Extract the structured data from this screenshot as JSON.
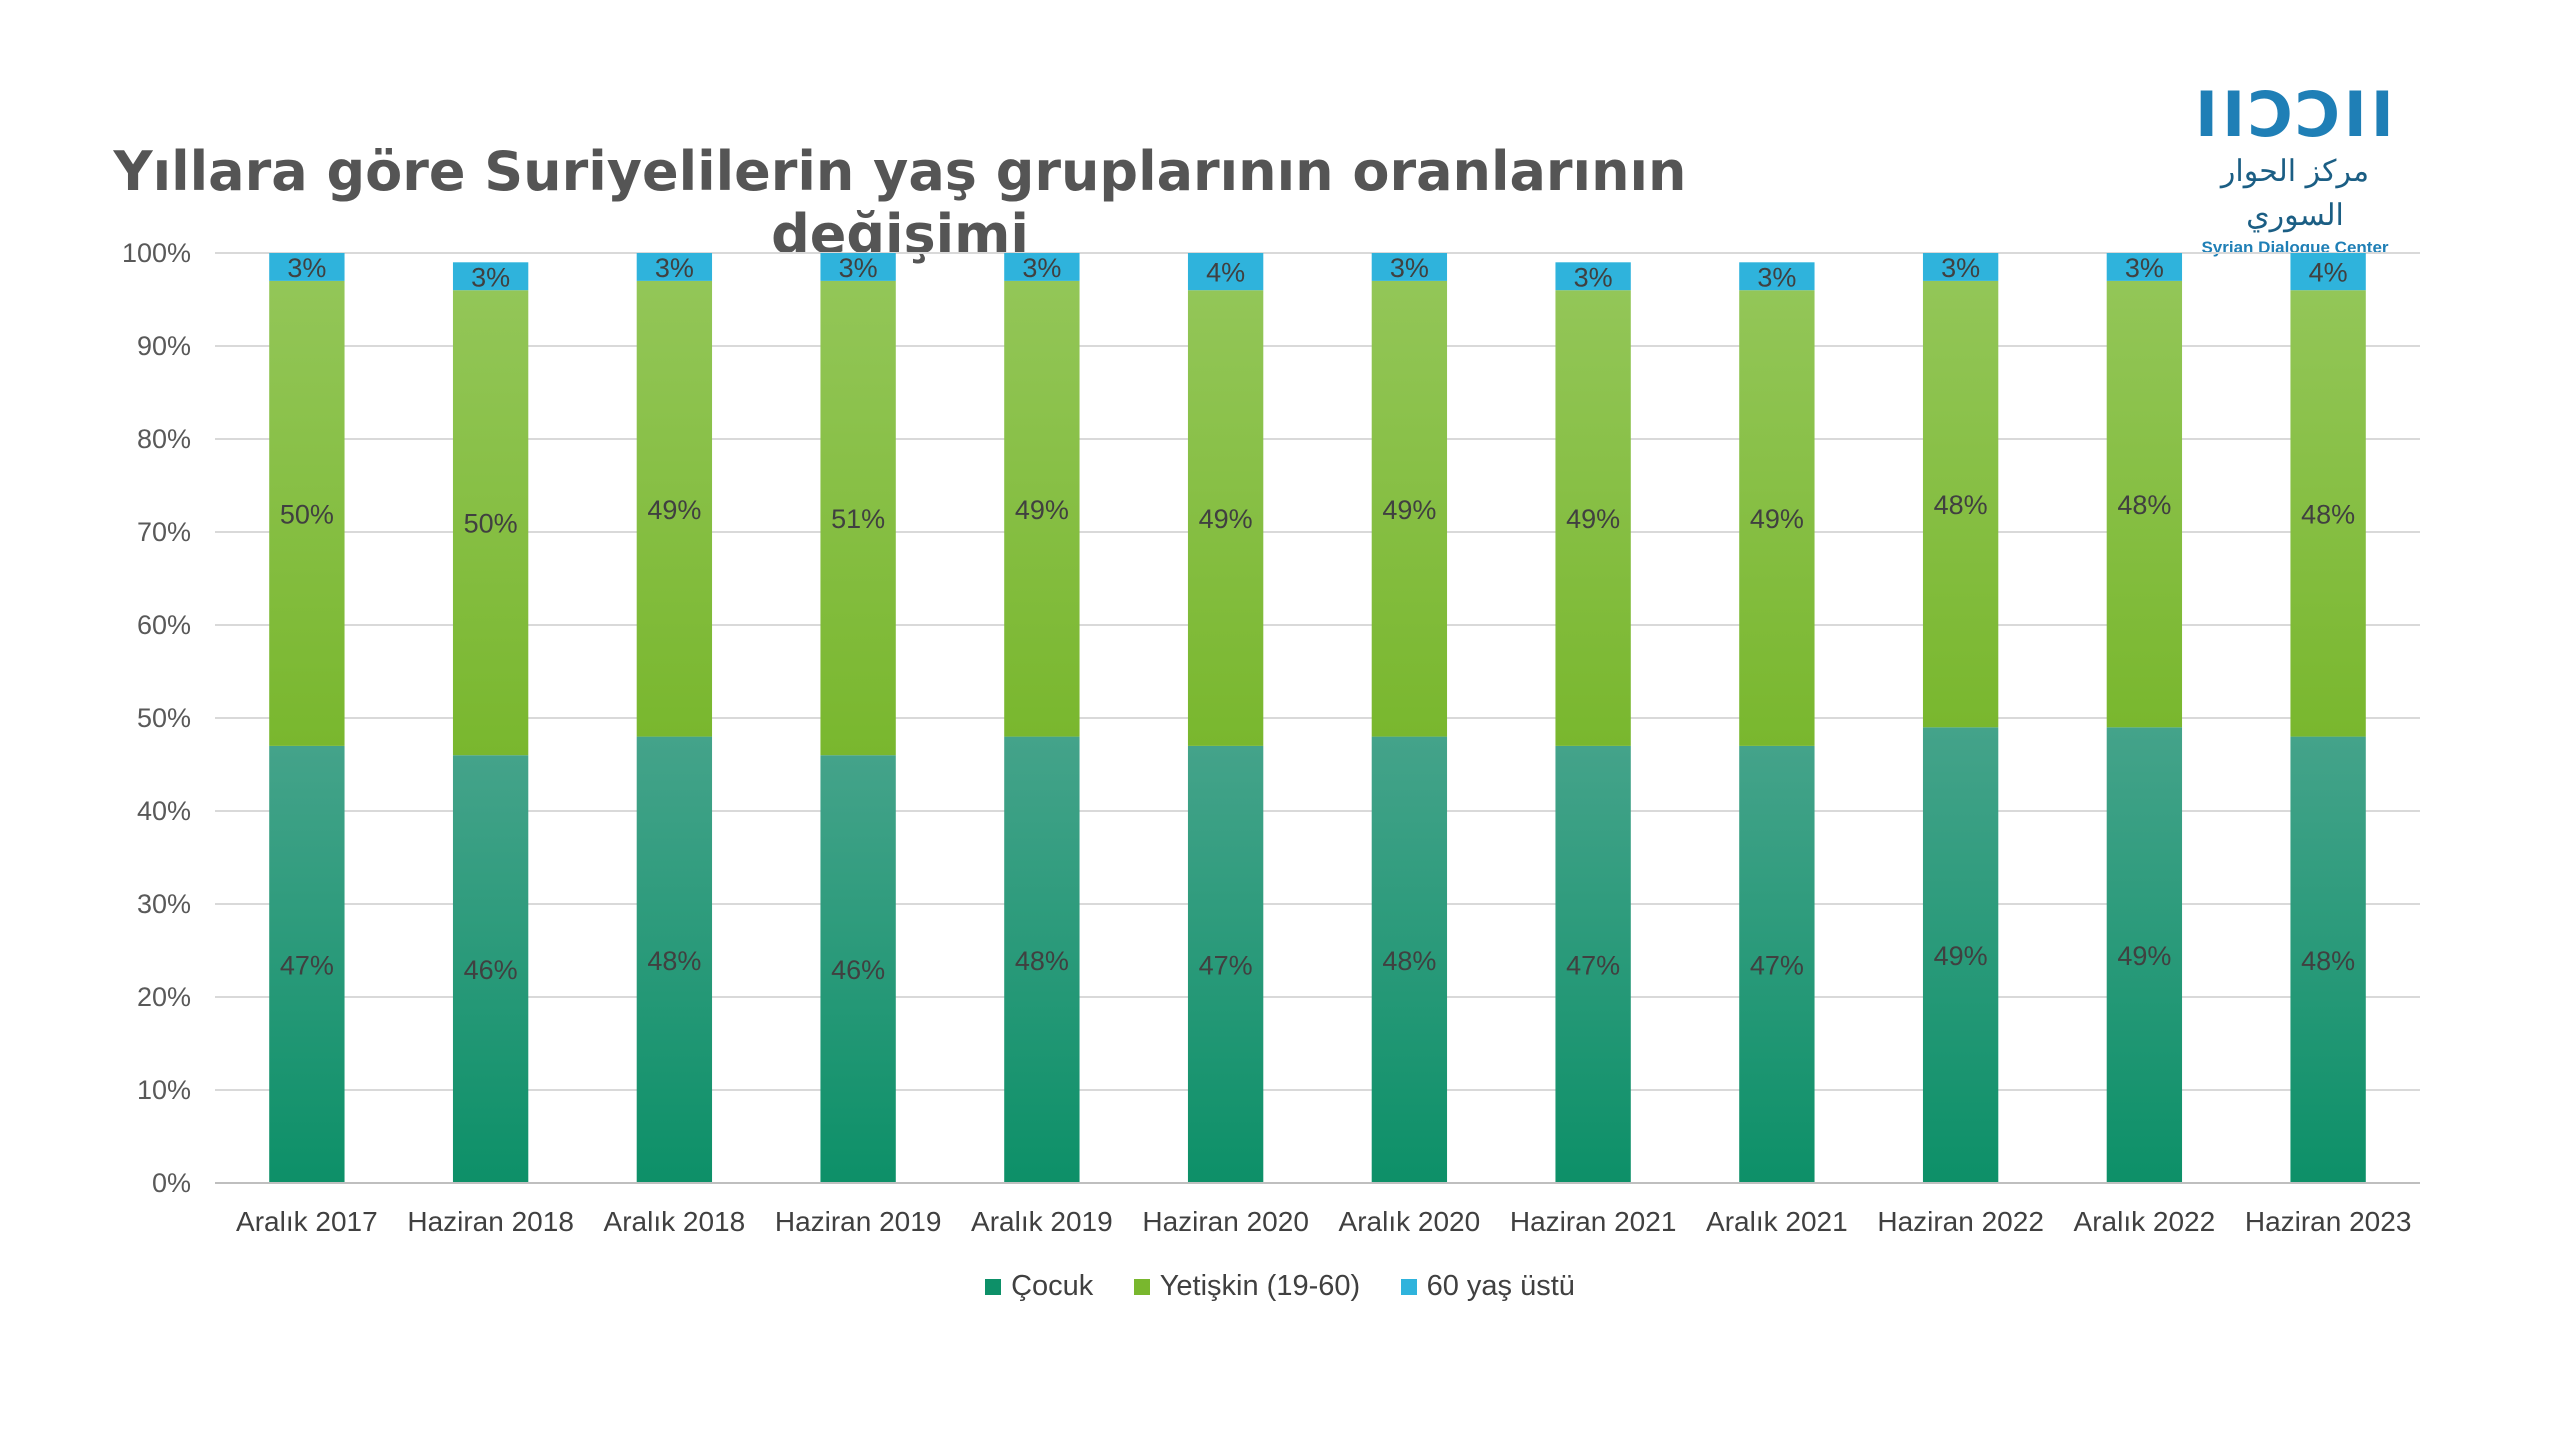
{
  "colors": {
    "cocuk_top": "#44a38a",
    "cocuk_bottom": "#0d9068",
    "yetiskin_top": "#93c658",
    "yetiskin_bottom": "#79b72e",
    "yasli": "#2fb3dc",
    "grid": "#d9d9d9",
    "logo": "#1f7fb6"
  },
  "logo": {
    "mark": "ΙΙϽϽΙΙ",
    "arabic": "مركز الحوار السوري",
    "english": "Syrian Dialogue Center"
  },
  "chart_data": {
    "type": "bar",
    "stacked": true,
    "title": "Yıllara göre Suriyelilerin yaş gruplarının oranlarının değişimi",
    "categories": [
      "Aralık 2017",
      "Haziran 2018",
      "Aralık 2018",
      "Haziran 2019",
      "Aralık 2019",
      "Haziran 2020",
      "Aralık 2020",
      "Haziran 2021",
      "Aralık 2021",
      "Haziran 2022",
      "Aralık 2022",
      "Haziran 2023"
    ],
    "series": [
      {
        "name": "Çocuk",
        "values": [
          47,
          46,
          48,
          46,
          48,
          47,
          48,
          47,
          47,
          49,
          49,
          48
        ],
        "labels": [
          "47%",
          "46%",
          "48%",
          "46%",
          "48%",
          "47%",
          "48%",
          "47%",
          "47%",
          "49%",
          "49%",
          "48%"
        ]
      },
      {
        "name": "Yetişkin (19-60)",
        "values": [
          50,
          50,
          49,
          51,
          49,
          49,
          49,
          49,
          49,
          48,
          48,
          48
        ],
        "labels": [
          "50%",
          "50%",
          "49%",
          "51%",
          "49%",
          "49%",
          "49%",
          "49%",
          "49%",
          "48%",
          "48%",
          "48%"
        ]
      },
      {
        "name": "60 yaş üstü",
        "values": [
          3,
          3,
          3,
          3,
          3,
          4,
          3,
          3,
          3,
          3,
          3,
          4
        ],
        "labels": [
          "3%",
          "3%",
          "3%",
          "3%",
          "3%",
          "4%",
          "3%",
          "3%",
          "3%",
          "3%",
          "3%",
          "4%"
        ]
      }
    ],
    "ylim": [
      0,
      100
    ],
    "yticks": [
      "0%",
      "10%",
      "20%",
      "30%",
      "40%",
      "50%",
      "60%",
      "70%",
      "80%",
      "90%",
      "100%"
    ],
    "grid": true,
    "legend": "bottom"
  }
}
